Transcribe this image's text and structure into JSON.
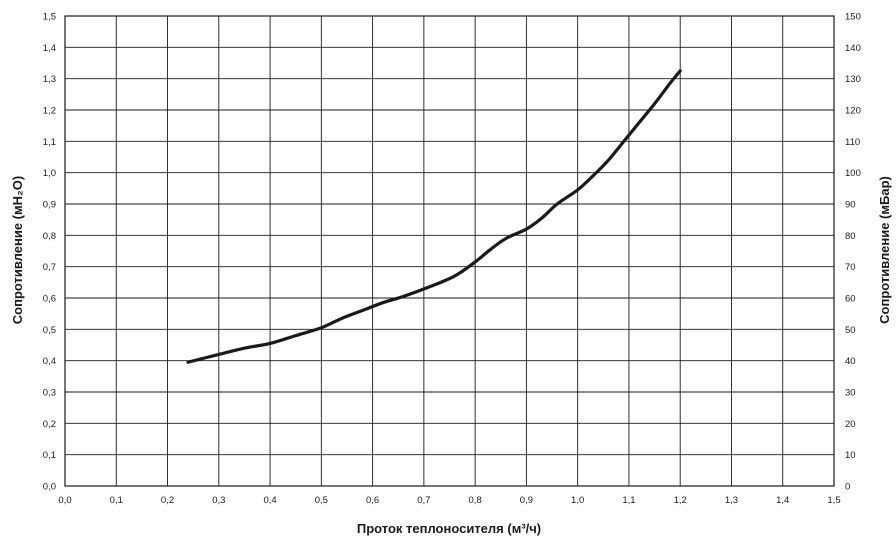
{
  "chart_data": {
    "type": "line",
    "title": "",
    "xlabel": "Проток теплоносителя (м³/ч)",
    "ylabel_left": "Сопротивление (мН₂О)",
    "ylabel_right": "Сопротивление (мБар)",
    "xlim": [
      0,
      1.5
    ],
    "ylim_left": [
      0,
      1.5
    ],
    "ylim_right": [
      0,
      150
    ],
    "grid": true,
    "x_ticks": [
      "0,0",
      "0,1",
      "0,2",
      "0,3",
      "0,4",
      "0,5",
      "0,6",
      "0,7",
      "0,8",
      "0,9",
      "1,0",
      "1,1",
      "1,2",
      "1,3",
      "1,4",
      "1,5"
    ],
    "y_left_ticks": [
      "0,0",
      "0,1",
      "0,2",
      "0,3",
      "0,4",
      "0,5",
      "0,6",
      "0,7",
      "0,8",
      "0,9",
      "1,0",
      "1,1",
      "1,2",
      "1,3",
      "1,4",
      "1,5"
    ],
    "y_right_ticks": [
      "0",
      "10",
      "20",
      "30",
      "40",
      "50",
      "60",
      "70",
      "80",
      "90",
      "100",
      "110",
      "120",
      "130",
      "140",
      "150"
    ],
    "series": [
      {
        "x": [
          0.24,
          0.3,
          0.35,
          0.4,
          0.45,
          0.5,
          0.54,
          0.58,
          0.62,
          0.66,
          0.71,
          0.76,
          0.8,
          0.83,
          0.86,
          0.9,
          0.93,
          0.96,
          1.0,
          1.03,
          1.06,
          1.09,
          1.12,
          1.15,
          1.18,
          1.2
        ],
        "y": [
          0.395,
          0.42,
          0.44,
          0.455,
          0.48,
          0.505,
          0.535,
          0.56,
          0.585,
          0.605,
          0.635,
          0.67,
          0.715,
          0.755,
          0.79,
          0.82,
          0.855,
          0.9,
          0.945,
          0.99,
          1.04,
          1.1,
          1.16,
          1.22,
          1.285,
          1.325
        ]
      }
    ]
  }
}
